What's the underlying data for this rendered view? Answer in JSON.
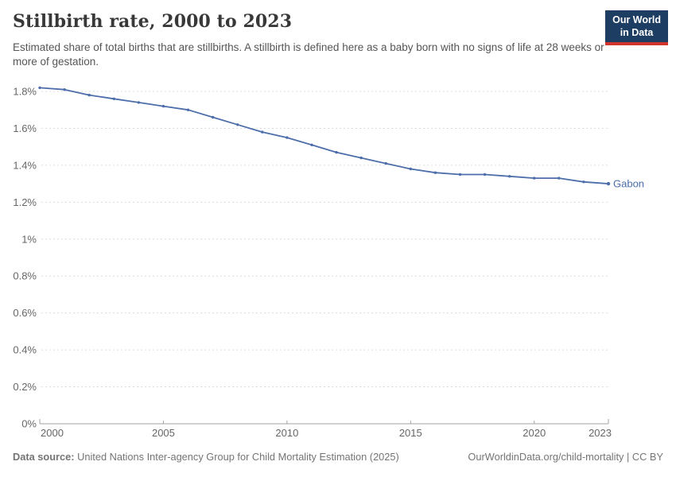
{
  "header": {
    "title": "Stillbirth rate, 2000 to 2023",
    "subtitle": "Estimated share of total births that are stillbirths. A stillbirth is defined here as a baby born with no signs of life at 28 weeks or more of gestation.",
    "logo": {
      "line1": "Our World",
      "line2": "in Data"
    }
  },
  "chart_data": {
    "type": "line",
    "title": "Stillbirth rate, 2000 to 2023",
    "xlabel": "",
    "ylabel": "",
    "x": [
      2000,
      2001,
      2002,
      2003,
      2004,
      2005,
      2006,
      2007,
      2008,
      2009,
      2010,
      2011,
      2012,
      2013,
      2014,
      2015,
      2016,
      2017,
      2018,
      2019,
      2020,
      2021,
      2022,
      2023
    ],
    "series": [
      {
        "name": "Gabon",
        "color": "#4d6eaa",
        "values": [
          1.82,
          1.81,
          1.78,
          1.76,
          1.74,
          1.72,
          1.7,
          1.66,
          1.62,
          1.58,
          1.55,
          1.51,
          1.47,
          1.44,
          1.41,
          1.38,
          1.36,
          1.35,
          1.35,
          1.34,
          1.33,
          1.33,
          1.31,
          1.3
        ]
      }
    ],
    "x_ticks": [
      2000,
      2005,
      2010,
      2015,
      2020,
      2023
    ],
    "y_ticks": [
      0,
      0.2,
      0.4,
      0.6,
      0.8,
      1,
      1.2,
      1.4,
      1.6,
      1.8
    ],
    "y_tick_suffix": "%",
    "ylim": [
      0,
      1.8
    ],
    "xlim": [
      2000,
      2023
    ],
    "grid": "horizontal-dashed",
    "legend_position": "end-of-line"
  },
  "footer": {
    "source_label": "Data source:",
    "source_text": "United Nations Inter-agency Group for Child Mortality Estimation (2025)",
    "right_text": "OurWorldinData.org/child-mortality | CC BY"
  },
  "colors": {
    "line": "#4d6eaa",
    "grid": "#dcdcdc",
    "axis": "#a3a3a3",
    "tick_label": "#666666",
    "title": "#383838",
    "subtitle": "#555555",
    "footer": "#757575",
    "logo_bg": "#1d3d63",
    "logo_accent": "#d0342c"
  }
}
